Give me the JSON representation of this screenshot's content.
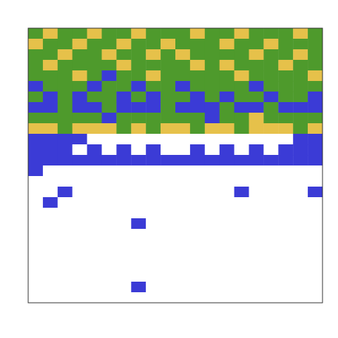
{
  "chart_data": {
    "type": "heatmap",
    "tick_labels": false,
    "colors": [
      "#ffffff",
      "#3b3bd6",
      "#4e9a2c",
      "#e6c14a"
    ],
    "cells": [
      [
        2,
        3,
        2,
        2,
        3,
        2,
        2,
        3,
        2,
        2,
        2,
        3,
        2,
        2,
        3,
        2,
        2,
        2,
        3,
        2
      ],
      [
        3,
        2,
        2,
        3,
        2,
        2,
        3,
        2,
        2,
        3,
        2,
        2,
        2,
        3,
        2,
        2,
        3,
        2,
        2,
        2
      ],
      [
        2,
        2,
        3,
        2,
        2,
        3,
        2,
        2,
        3,
        2,
        3,
        2,
        2,
        2,
        2,
        3,
        2,
        2,
        3,
        2
      ],
      [
        2,
        3,
        2,
        2,
        2,
        2,
        3,
        2,
        2,
        2,
        2,
        3,
        2,
        3,
        2,
        2,
        2,
        3,
        2,
        2
      ],
      [
        2,
        2,
        2,
        3,
        2,
        1,
        2,
        2,
        3,
        2,
        2,
        2,
        2,
        2,
        3,
        2,
        2,
        2,
        2,
        3
      ],
      [
        1,
        2,
        2,
        2,
        1,
        2,
        2,
        1,
        2,
        2,
        1,
        2,
        2,
        2,
        2,
        1,
        2,
        2,
        2,
        2
      ],
      [
        2,
        1,
        2,
        1,
        2,
        2,
        1,
        2,
        1,
        2,
        2,
        1,
        2,
        1,
        2,
        2,
        1,
        2,
        2,
        1
      ],
      [
        1,
        1,
        2,
        1,
        1,
        2,
        1,
        1,
        1,
        2,
        1,
        1,
        1,
        2,
        1,
        1,
        2,
        1,
        1,
        1
      ],
      [
        2,
        2,
        2,
        2,
        2,
        1,
        2,
        2,
        2,
        2,
        2,
        2,
        1,
        2,
        2,
        3,
        2,
        2,
        2,
        2
      ],
      [
        3,
        3,
        2,
        3,
        3,
        3,
        2,
        3,
        2,
        3,
        3,
        2,
        3,
        3,
        2,
        3,
        3,
        3,
        2,
        3
      ],
      [
        1,
        1,
        1,
        1,
        0,
        0,
        0,
        0,
        0,
        0,
        0,
        0,
        0,
        0,
        0,
        0,
        0,
        0,
        1,
        1
      ],
      [
        1,
        1,
        1,
        0,
        1,
        0,
        1,
        0,
        1,
        0,
        0,
        1,
        0,
        1,
        0,
        1,
        0,
        1,
        1,
        1
      ],
      [
        1,
        1,
        1,
        1,
        1,
        1,
        1,
        1,
        1,
        1,
        1,
        1,
        1,
        1,
        1,
        1,
        1,
        1,
        1,
        1
      ],
      [
        1,
        0,
        0,
        0,
        0,
        0,
        0,
        0,
        0,
        0,
        0,
        0,
        0,
        0,
        0,
        0,
        0,
        0,
        0,
        0
      ],
      [
        0,
        0,
        0,
        0,
        0,
        0,
        0,
        0,
        0,
        0,
        0,
        0,
        0,
        0,
        0,
        0,
        0,
        0,
        0,
        0
      ],
      [
        0,
        0,
        1,
        0,
        0,
        0,
        0,
        0,
        0,
        0,
        0,
        0,
        0,
        0,
        1,
        0,
        0,
        0,
        0,
        1
      ],
      [
        0,
        1,
        0,
        0,
        0,
        0,
        0,
        0,
        0,
        0,
        0,
        0,
        0,
        0,
        0,
        0,
        0,
        0,
        0,
        0
      ],
      [
        0,
        0,
        0,
        0,
        0,
        0,
        0,
        0,
        0,
        0,
        0,
        0,
        0,
        0,
        0,
        0,
        0,
        0,
        0,
        0
      ],
      [
        0,
        0,
        0,
        0,
        0,
        0,
        0,
        1,
        0,
        0,
        0,
        0,
        0,
        0,
        0,
        0,
        0,
        0,
        0,
        0
      ],
      [
        0,
        0,
        0,
        0,
        0,
        0,
        0,
        0,
        0,
        0,
        0,
        0,
        0,
        0,
        0,
        0,
        0,
        0,
        0,
        0
      ],
      [
        0,
        0,
        0,
        0,
        0,
        0,
        0,
        0,
        0,
        0,
        0,
        0,
        0,
        0,
        0,
        0,
        0,
        0,
        0,
        0
      ],
      [
        0,
        0,
        0,
        0,
        0,
        0,
        0,
        0,
        0,
        0,
        0,
        0,
        0,
        0,
        0,
        0,
        0,
        0,
        0,
        0
      ],
      [
        0,
        0,
        0,
        0,
        0,
        0,
        0,
        0,
        0,
        0,
        0,
        0,
        0,
        0,
        0,
        0,
        0,
        0,
        0,
        0
      ],
      [
        0,
        0,
        0,
        0,
        0,
        0,
        0,
        0,
        0,
        0,
        0,
        0,
        0,
        0,
        0,
        0,
        0,
        0,
        0,
        0
      ],
      [
        0,
        0,
        0,
        0,
        0,
        0,
        0,
        1,
        0,
        0,
        0,
        0,
        0,
        0,
        0,
        0,
        0,
        0,
        0,
        0
      ],
      [
        0,
        0,
        0,
        0,
        0,
        0,
        0,
        0,
        0,
        0,
        0,
        0,
        0,
        0,
        0,
        0,
        0,
        0,
        0,
        0
      ]
    ]
  }
}
